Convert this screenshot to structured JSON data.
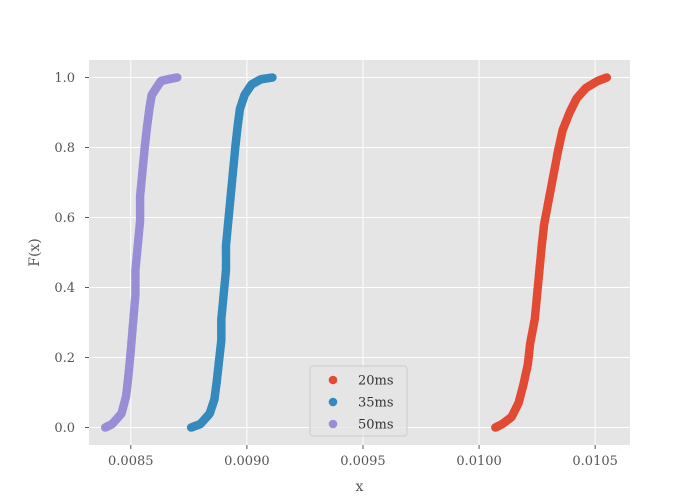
{
  "chart_data": {
    "type": "scatter",
    "title": "",
    "xlabel": "x",
    "ylabel": "F(x)",
    "xlim": [
      0.00832,
      0.01065
    ],
    "ylim": [
      -0.05,
      1.05
    ],
    "xticks": [
      {
        "value": 0.0085,
        "label": "0.0085"
      },
      {
        "value": 0.009,
        "label": "0.0090"
      },
      {
        "value": 0.0095,
        "label": "0.0095"
      },
      {
        "value": 0.01,
        "label": "0.0100"
      },
      {
        "value": 0.0105,
        "label": "0.0105"
      }
    ],
    "yticks": [
      {
        "value": 0.0,
        "label": "0.0"
      },
      {
        "value": 0.2,
        "label": "0.2"
      },
      {
        "value": 0.4,
        "label": "0.4"
      },
      {
        "value": 0.6,
        "label": "0.6"
      },
      {
        "value": 0.8,
        "label": "0.8"
      },
      {
        "value": 1.0,
        "label": "1.0"
      }
    ],
    "grid": true,
    "legend_position": "lower center",
    "series": [
      {
        "name": "20ms",
        "color": "#E24A33",
        "x": [
          0.01007,
          0.0101,
          0.01014,
          0.01017,
          0.01019,
          0.01021,
          0.01022,
          0.01024,
          0.01025,
          0.01026,
          0.01027,
          0.01028,
          0.0103,
          0.01032,
          0.01034,
          0.01036,
          0.01039,
          0.01042,
          0.01046,
          0.01051,
          0.01055
        ],
        "y": [
          0.0,
          0.01,
          0.03,
          0.07,
          0.12,
          0.18,
          0.24,
          0.31,
          0.38,
          0.45,
          0.52,
          0.58,
          0.65,
          0.72,
          0.79,
          0.85,
          0.9,
          0.94,
          0.97,
          0.99,
          1.0
        ]
      },
      {
        "name": "35ms",
        "color": "#348ABD",
        "x": [
          0.00876,
          0.0088,
          0.00884,
          0.00886,
          0.00887,
          0.00888,
          0.00889,
          0.00889,
          0.0089,
          0.00891,
          0.00891,
          0.00892,
          0.00893,
          0.00894,
          0.00895,
          0.00896,
          0.00897,
          0.00899,
          0.00902,
          0.00906,
          0.00911
        ],
        "y": [
          0.0,
          0.01,
          0.04,
          0.08,
          0.13,
          0.19,
          0.25,
          0.31,
          0.38,
          0.45,
          0.52,
          0.59,
          0.66,
          0.73,
          0.8,
          0.86,
          0.91,
          0.95,
          0.98,
          0.995,
          1.0
        ]
      },
      {
        "name": "50ms",
        "color": "#988ED5",
        "x": [
          0.00839,
          0.00842,
          0.00846,
          0.00848,
          0.00849,
          0.0085,
          0.00851,
          0.00852,
          0.00852,
          0.00853,
          0.00854,
          0.00854,
          0.00855,
          0.00856,
          0.00857,
          0.00858,
          0.00859,
          0.00861,
          0.00863,
          0.00866,
          0.0087
        ],
        "y": [
          0.0,
          0.01,
          0.04,
          0.09,
          0.15,
          0.22,
          0.3,
          0.38,
          0.45,
          0.52,
          0.59,
          0.66,
          0.73,
          0.8,
          0.86,
          0.91,
          0.95,
          0.97,
          0.99,
          0.995,
          1.0
        ]
      }
    ]
  }
}
